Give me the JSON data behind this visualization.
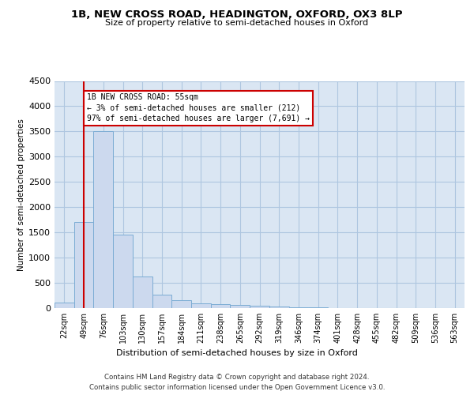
{
  "title_line1": "1B, NEW CROSS ROAD, HEADINGTON, OXFORD, OX3 8LP",
  "title_line2": "Size of property relative to semi-detached houses in Oxford",
  "xlabel": "Distribution of semi-detached houses by size in Oxford",
  "ylabel": "Number of semi-detached properties",
  "footer_line1": "Contains HM Land Registry data © Crown copyright and database right 2024.",
  "footer_line2": "Contains public sector information licensed under the Open Government Licence v3.0.",
  "bins": [
    "22sqm",
    "49sqm",
    "76sqm",
    "103sqm",
    "130sqm",
    "157sqm",
    "184sqm",
    "211sqm",
    "238sqm",
    "265sqm",
    "292sqm",
    "319sqm",
    "346sqm",
    "374sqm",
    "401sqm",
    "428sqm",
    "455sqm",
    "482sqm",
    "509sqm",
    "536sqm",
    "563sqm"
  ],
  "bar_values": [
    105,
    1700,
    3500,
    1450,
    625,
    265,
    150,
    100,
    75,
    55,
    40,
    25,
    18,
    10,
    7,
    5,
    3,
    2,
    2,
    1,
    1
  ],
  "bar_color": "#ccd9ee",
  "bar_edge_color": "#7bacd4",
  "grid_color": "#aec6e0",
  "background_color": "#dae6f3",
  "annotation_text": "1B NEW CROSS ROAD: 55sqm\n← 3% of semi-detached houses are smaller (212)\n97% of semi-detached houses are larger (7,691) →",
  "property_line_x": 1,
  "property_line_color": "#cc0000",
  "annotation_box_facecolor": "#ffffff",
  "annotation_box_edgecolor": "#cc0000",
  "ylim": [
    0,
    4500
  ],
  "yticks": [
    0,
    500,
    1000,
    1500,
    2000,
    2500,
    3000,
    3500,
    4000,
    4500
  ]
}
